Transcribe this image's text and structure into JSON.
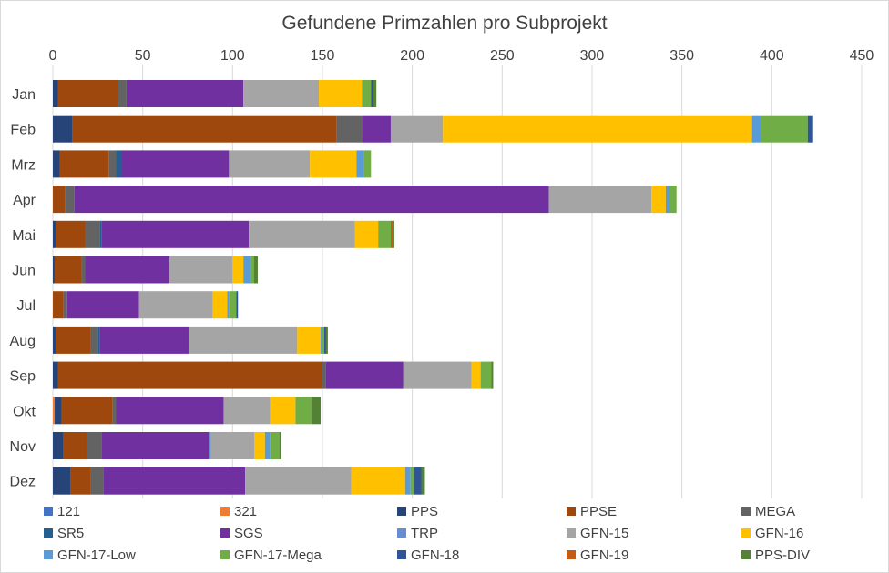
{
  "chart_data": {
    "type": "bar",
    "orientation": "horizontal",
    "stacked": true,
    "title": "Gefundene Primzahlen pro Subprojekt",
    "xlabel": "",
    "ylabel": "",
    "xlim": [
      0,
      450
    ],
    "x_ticks": [
      0,
      50,
      100,
      150,
      200,
      250,
      300,
      350,
      400,
      450
    ],
    "x_axis_position": "top",
    "grid": true,
    "legend_position": "bottom",
    "categories": [
      "Jan",
      "Feb",
      "Mrz",
      "Apr",
      "Mai",
      "Jun",
      "Jul",
      "Aug",
      "Sep",
      "Okt",
      "Nov",
      "Dez"
    ],
    "series": [
      {
        "name": "121",
        "color": "#4472c4",
        "values": [
          0,
          0,
          0,
          0,
          0,
          0,
          0,
          0,
          0,
          0,
          0,
          0
        ]
      },
      {
        "name": "321",
        "color": "#ed7d31",
        "values": [
          0,
          0,
          0,
          0,
          0,
          0,
          0,
          0,
          0,
          1,
          0,
          0
        ]
      },
      {
        "name": "PPS",
        "color": "#264478",
        "values": [
          3,
          11,
          4,
          0,
          2,
          1,
          0,
          2,
          3,
          4,
          6,
          10
        ]
      },
      {
        "name": "PPSE",
        "color": "#9e480e",
        "values": [
          33,
          147,
          27,
          7,
          16,
          15,
          6,
          19,
          147,
          28,
          13,
          11
        ]
      },
      {
        "name": "MEGA",
        "color": "#636363",
        "values": [
          5,
          14,
          4,
          5,
          8,
          2,
          2,
          4,
          2,
          2,
          8,
          7
        ]
      },
      {
        "name": "SR5",
        "color": "#255e91",
        "values": [
          0,
          0,
          3,
          0,
          1,
          0,
          0,
          1,
          0,
          0,
          0,
          0
        ]
      },
      {
        "name": "SGS",
        "color": "#7030a0",
        "values": [
          65,
          16,
          60,
          264,
          82,
          47,
          40,
          50,
          43,
          60,
          60,
          79
        ]
      },
      {
        "name": "TRP",
        "color": "#698ed0",
        "values": [
          0,
          0,
          0,
          0,
          0,
          0,
          0,
          0,
          0,
          0,
          1,
          0
        ]
      },
      {
        "name": "GFN-15",
        "color": "#a5a5a5",
        "values": [
          42,
          29,
          45,
          57,
          59,
          35,
          41,
          60,
          38,
          26,
          24,
          59
        ]
      },
      {
        "name": "GFN-16",
        "color": "#ffc000",
        "values": [
          24,
          172,
          26,
          8,
          13,
          6,
          8,
          13,
          5,
          14,
          6,
          30
        ]
      },
      {
        "name": "GFN-17-Low",
        "color": "#5b9bd5",
        "values": [
          0,
          5,
          4,
          2,
          0,
          4,
          1,
          1,
          0,
          0,
          3,
          3
        ]
      },
      {
        "name": "GFN-17-Mega",
        "color": "#70ad47",
        "values": [
          5,
          26,
          4,
          4,
          7,
          2,
          4,
          1,
          6,
          9,
          5,
          2
        ]
      },
      {
        "name": "GFN-18",
        "color": "#2f5597",
        "values": [
          1,
          3,
          0,
          0,
          0,
          0,
          1,
          1,
          0,
          0,
          0,
          4
        ]
      },
      {
        "name": "GFN-19",
        "color": "#c55a11",
        "values": [
          0,
          0,
          0,
          0,
          1,
          0,
          0,
          0,
          0,
          0,
          0,
          0
        ]
      },
      {
        "name": "PPS-DIV",
        "color": "#548235",
        "values": [
          2,
          0,
          0,
          0,
          1,
          2,
          0,
          1,
          1,
          5,
          1,
          2
        ]
      }
    ]
  }
}
